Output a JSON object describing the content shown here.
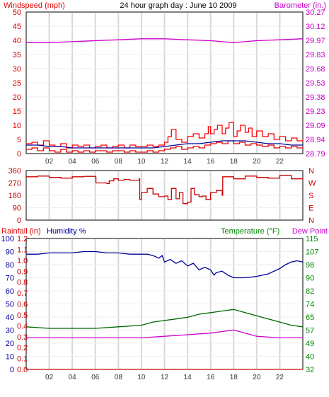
{
  "colors": {
    "wind": "#e00000",
    "gust": "#ff0000",
    "avg": "#000099",
    "baro": "#cc00cc",
    "winddir": "#cc0000",
    "humidity": "#000099",
    "temp": "#006600",
    "dew": "#cc00cc",
    "rain": "#cc0000",
    "axis_green": "#008800",
    "grid": "#d8d8d8"
  },
  "chart_data": [
    {
      "type": "line",
      "title": "24 hour graph day : June 10 2009",
      "ylabel": "Windspeed (mph)",
      "y2label": "Barometer (in.)",
      "ylim": [
        0,
        50
      ],
      "y_ticks": [
        "0",
        "5",
        "10",
        "15",
        "20",
        "25",
        "30",
        "35",
        "40",
        "45",
        "50"
      ],
      "y2lim": [
        28.79,
        30.27
      ],
      "y2_ticks": [
        "28.79",
        "28.94",
        "29.09",
        "29.23",
        "29.38",
        "29.53",
        "29.68",
        "29.83",
        "29.97",
        "30.12",
        "30.27"
      ],
      "x_ticks": [
        "02",
        "04",
        "06",
        "08",
        "10",
        "12",
        "14",
        "16",
        "18",
        "20",
        "22",
        ""
      ],
      "grid": true,
      "series": [
        {
          "key": "gust",
          "color_key": "gust",
          "x": [
            0,
            0.5,
            1,
            1.5,
            2,
            2.5,
            3,
            3.5,
            4,
            4.5,
            5,
            5.5,
            6,
            6.5,
            7,
            7.5,
            8,
            8.5,
            9,
            9.5,
            10,
            10.5,
            11,
            11.5,
            12,
            12.3,
            12.6,
            13,
            13.5,
            14,
            14.5,
            15,
            15.5,
            15.8,
            16,
            16.3,
            16.6,
            17,
            17.3,
            17.6,
            18,
            18.3,
            18.6,
            19,
            19.3,
            19.6,
            20,
            20.5,
            21,
            21.5,
            22,
            22.5,
            23,
            23.5,
            24
          ],
          "values": [
            3.5,
            4,
            3,
            4.5,
            3,
            2.5,
            3.5,
            2,
            3,
            2.5,
            3,
            2,
            2.5,
            3,
            2,
            2.5,
            3,
            2,
            3,
            2.5,
            2.5,
            3,
            2.5,
            3,
            4,
            6,
            8.5,
            5,
            4,
            6,
            7,
            5.5,
            7,
            9.5,
            7,
            8.5,
            10,
            7,
            9,
            11,
            6,
            8,
            10,
            7.5,
            9,
            6,
            8,
            6,
            7,
            5,
            6,
            4.5,
            5.5,
            4.5,
            5
          ]
        },
        {
          "key": "wind",
          "color_key": "wind",
          "x": [
            0,
            0.5,
            1,
            1.5,
            2,
            2.5,
            3,
            3.5,
            4,
            4.5,
            5,
            5.5,
            6,
            6.5,
            7,
            7.5,
            8,
            8.5,
            9,
            9.5,
            10,
            10.5,
            11,
            11.5,
            12,
            12.5,
            13,
            13.5,
            14,
            14.5,
            15,
            15.5,
            16,
            16.5,
            17,
            17.5,
            18,
            18.5,
            19,
            19.5,
            20,
            20.5,
            21,
            21.5,
            22,
            22.5,
            23,
            23.5,
            24
          ],
          "values": [
            1.5,
            2,
            1,
            2,
            1,
            0.5,
            1.5,
            0.5,
            1,
            0.5,
            1,
            0.5,
            1,
            1,
            0.5,
            1,
            1,
            0.5,
            1,
            0.5,
            0.5,
            1,
            0.5,
            1,
            1.5,
            2,
            2.5,
            1.5,
            2,
            2.5,
            2,
            3,
            3.5,
            4,
            3.5,
            4.5,
            3.5,
            4,
            3,
            3.5,
            3,
            2.5,
            3,
            2,
            2.5,
            2,
            2.5,
            2,
            2.5
          ]
        },
        {
          "key": "avg",
          "color_key": "avg",
          "x": [
            0,
            1,
            2,
            3,
            4,
            5,
            6,
            7,
            8,
            9,
            10,
            11,
            12,
            13,
            14,
            15,
            16,
            17,
            18,
            19,
            20,
            21,
            22,
            23,
            24
          ],
          "values": [
            3,
            3,
            2.5,
            2.5,
            2,
            2,
            2,
            2,
            2,
            2,
            2,
            2,
            2.5,
            3,
            3.5,
            3.5,
            4,
            4.5,
            4.5,
            4.5,
            4,
            3.5,
            3.5,
            3,
            3
          ]
        },
        {
          "key": "baro",
          "color_key": "baro",
          "axis": "y2",
          "x": [
            0,
            2,
            4,
            6,
            8,
            10,
            11,
            12,
            14,
            16,
            17,
            18,
            19,
            20,
            22,
            24
          ],
          "values": [
            29.95,
            29.95,
            29.96,
            29.97,
            29.98,
            29.99,
            29.99,
            29.99,
            29.98,
            29.97,
            29.96,
            29.95,
            29.96,
            29.97,
            29.98,
            29.99
          ]
        }
      ]
    },
    {
      "type": "line",
      "ylim": [
        0,
        360
      ],
      "y_ticks": [
        "0",
        "90",
        "180",
        "270",
        "360"
      ],
      "y2_ticks": [
        "N",
        "E",
        "S",
        "W",
        "N"
      ],
      "x_ticks": [
        "",
        "",
        "",
        "",
        "",
        "",
        "",
        "",
        "",
        "",
        "",
        ""
      ],
      "grid": true,
      "series": [
        {
          "key": "winddir",
          "color_key": "winddir",
          "x": [
            0,
            1,
            2,
            3,
            4,
            5,
            6,
            6.05,
            7,
            7.2,
            7.6,
            8,
            8.5,
            9,
            9.8,
            9.85,
            10,
            10.5,
            11,
            11.5,
            12,
            12.3,
            12.6,
            13,
            13.3,
            13.6,
            14,
            14.3,
            14.6,
            15,
            15.3,
            15.6,
            16,
            16.5,
            17,
            17.05,
            18,
            19,
            20,
            21,
            22,
            23,
            24
          ],
          "values": [
            315,
            320,
            310,
            305,
            315,
            318,
            312,
            270,
            265,
            285,
            300,
            290,
            295,
            290,
            300,
            150,
            200,
            230,
            190,
            170,
            175,
            150,
            230,
            155,
            200,
            120,
            130,
            230,
            185,
            170,
            175,
            150,
            200,
            215,
            180,
            315,
            300,
            320,
            310,
            305,
            325,
            300,
            310
          ]
        }
      ]
    },
    {
      "type": "line",
      "ylabel": "Rainfall (in)",
      "ylabel_secondary": "Humidity %",
      "y2label": "Temperature (°F)",
      "y2label_secondary": "Dew Point",
      "rain_ticks": [
        "0.0",
        "0.1",
        "0.2",
        "0.3",
        "0.4",
        "0.5",
        "0.6",
        "0.7",
        "0.8",
        "0.9",
        "1.0",
        "1.1",
        "1.2"
      ],
      "ylim": [
        0,
        100
      ],
      "y_ticks": [
        "0",
        "10",
        "20",
        "30",
        "40",
        "50",
        "60",
        "70",
        "80",
        "90",
        "100"
      ],
      "y2lim": [
        32,
        115
      ],
      "y2_ticks": [
        "32",
        "40",
        "49",
        "57",
        "65",
        "74",
        "82",
        "90",
        "98",
        "107",
        "115"
      ],
      "x_ticks": [
        "02",
        "04",
        "06",
        "08",
        "10",
        "12",
        "14",
        "16",
        "18",
        "20",
        "22",
        ""
      ],
      "grid": true,
      "series": [
        {
          "key": "humidity",
          "color_key": "humidity",
          "x": [
            0,
            1,
            2,
            3,
            4,
            5,
            6,
            7,
            8,
            9,
            10,
            10.5,
            11,
            11.5,
            11.8,
            12,
            12.5,
            13,
            13.5,
            14,
            14.5,
            15,
            15.5,
            16,
            16.3,
            16.5,
            17,
            17.5,
            18,
            19,
            20,
            21,
            22,
            22.5,
            23,
            23.5,
            24
          ],
          "values": [
            88,
            88,
            89,
            89,
            89,
            90,
            90,
            89,
            89,
            88,
            88,
            88,
            87,
            85,
            87,
            82,
            84,
            81,
            83,
            79,
            81,
            76,
            78,
            76,
            72,
            74,
            75,
            72,
            70,
            70,
            71,
            73,
            77,
            80,
            82,
            83,
            82
          ]
        },
        {
          "key": "temp",
          "color_key": "temp",
          "axis": "y2",
          "x": [
            0,
            2,
            4,
            6,
            8,
            10,
            11,
            12,
            13,
            14,
            15,
            16,
            17,
            18,
            18.5,
            19,
            20,
            21,
            22,
            23,
            24
          ],
          "values": [
            59,
            58,
            58,
            58,
            59,
            60,
            62,
            63,
            64,
            65,
            67,
            68,
            69,
            70,
            69,
            68,
            66,
            64,
            62,
            60,
            59
          ]
        },
        {
          "key": "dew",
          "color_key": "dew",
          "axis": "y2",
          "x": [
            0,
            2,
            4,
            6,
            8,
            10,
            12,
            14,
            16,
            17,
            18,
            19,
            20,
            22,
            24
          ],
          "values": [
            52,
            52,
            52,
            52,
            52,
            52,
            53,
            54,
            55,
            56,
            57,
            55,
            53,
            52,
            52
          ]
        },
        {
          "key": "rain",
          "color_key": "rain",
          "x": [
            0,
            24
          ],
          "values": [
            0,
            0
          ]
        }
      ]
    }
  ]
}
